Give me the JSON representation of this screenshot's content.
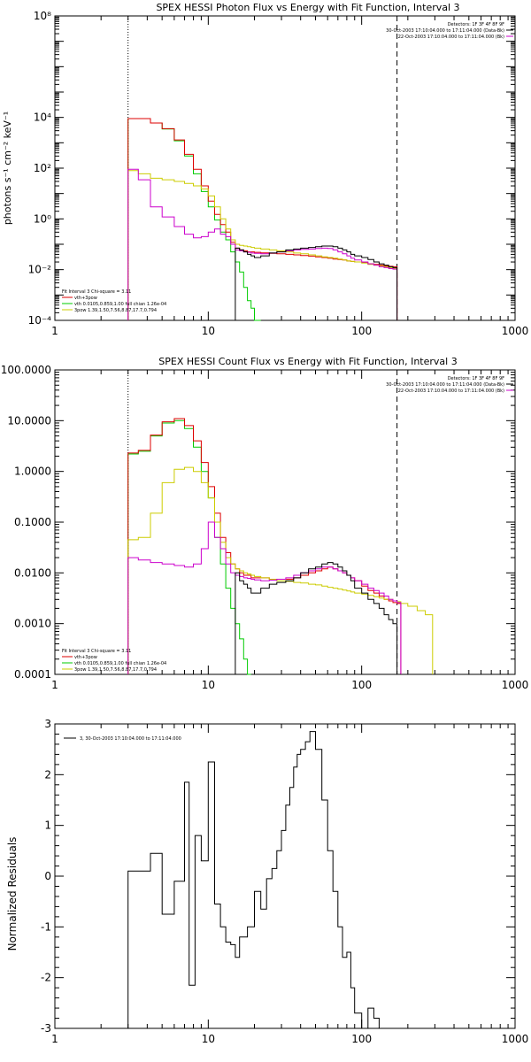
{
  "chart_data": [
    {
      "type": "line",
      "title": "SPEX HESSI Photon Flux vs Energy with Fit Function, Interval 3",
      "ylabel": "photons s⁻¹ cm⁻² keV⁻¹",
      "xlabel": "",
      "xscale": "log",
      "yscale": "log",
      "xlim": [
        1,
        1000
      ],
      "ylim": [
        0.0001,
        100000000
      ],
      "xticks": [
        {
          "v": 1,
          "label": "1"
        },
        {
          "v": 10,
          "label": "10"
        },
        {
          "v": 100,
          "label": "100"
        },
        {
          "v": 1000,
          "label": "1000"
        }
      ],
      "yticks": [
        {
          "v": 0.0001,
          "label": "10⁻⁴"
        },
        {
          "v": 0.01,
          "label": "10⁻²"
        },
        {
          "v": 1,
          "label": "10⁰"
        },
        {
          "v": 100,
          "label": "10²"
        },
        {
          "v": 10000,
          "label": "10⁴"
        },
        {
          "v": 100000000,
          "label": "10⁸"
        }
      ],
      "vlines": [
        {
          "x": 3,
          "style": "dotted"
        },
        {
          "x": 170,
          "style": "dashed"
        }
      ],
      "legend_top": [
        "Detectors: 1F 3F 4F 8F 9F",
        "30-Oct-2003 17:10:04.000 to 17:11:04.000 (Data-Bk)",
        "22-Oct-2003 17:10:04.000 to 17:11:04.000 (Bk)"
      ],
      "legend_top_colors": [
        "",
        "#000000",
        "#cc00cc"
      ],
      "legend_bottom": [
        "Fit Interval 3   Chi-square = 3.11",
        "vth+3pow",
        "vth 0.0105,0.859,1.00   full chian 1.26e-04",
        "3pow 1.39,1.50,7.56,8.87,17.7,0.794"
      ],
      "legend_bottom_colors": [
        "",
        "#dd0000",
        "#00cc00",
        "#cccc00"
      ],
      "x": [
        3,
        3.5,
        4.2,
        5,
        6,
        7,
        8,
        9,
        10,
        11,
        12,
        13,
        14,
        15,
        16,
        17,
        18,
        19,
        20,
        22,
        25,
        28,
        32,
        36,
        40,
        45,
        50,
        55,
        60,
        65,
        70,
        75,
        80,
        85,
        90,
        100,
        110,
        120,
        130,
        140,
        150,
        160,
        170
      ],
      "series": [
        {
          "color": "#00cc00",
          "values": [
            9000,
            9000,
            6000,
            3500,
            1200,
            300,
            60,
            12,
            3,
            0.9,
            0.3,
            0.15,
            0.05,
            0.02,
            0.008,
            0.002,
            0.0006,
            0.0003,
            0.0001,
            null,
            null,
            null,
            null,
            null,
            null,
            null,
            null,
            null,
            null,
            null,
            null,
            null,
            null,
            null,
            null,
            null,
            null,
            null,
            null,
            null,
            null,
            null,
            null
          ]
        },
        {
          "color": "#dd0000",
          "values": [
            9000,
            9000,
            6000,
            3600,
            1300,
            350,
            90,
            20,
            5,
            1.5,
            0.6,
            0.3,
            0.12,
            0.07,
            0.06,
            0.055,
            0.05,
            0.05,
            0.048,
            0.046,
            0.044,
            0.042,
            0.04,
            0.038,
            0.036,
            0.034,
            0.032,
            0.03,
            0.028,
            0.026,
            0.025,
            0.024,
            0.022,
            0.021,
            0.02,
            0.019,
            0.017,
            0.016,
            0.015,
            0.014,
            0.0135,
            0.013,
            0.012
          ]
        },
        {
          "color": "#cccc00",
          "values": [
            80,
            60,
            40,
            35,
            30,
            25,
            20,
            15,
            8,
            3,
            1,
            0.4,
            0.15,
            0.1,
            0.09,
            0.085,
            0.08,
            0.075,
            0.07,
            0.065,
            0.06,
            0.055,
            0.05,
            0.045,
            0.042,
            0.038,
            0.035,
            0.032,
            0.03,
            0.028,
            0.026,
            0.024,
            0.022,
            0.021,
            0.02,
            0.018,
            0.016,
            0.015,
            0.014,
            0.013,
            0.012,
            0.011,
            0.01
          ]
        },
        {
          "color": "#cc00cc",
          "values": [
            90,
            35,
            3,
            1.2,
            0.5,
            0.25,
            0.18,
            0.2,
            0.3,
            0.4,
            0.25,
            0.2,
            0.1,
            0.06,
            0.055,
            0.05,
            0.048,
            0.045,
            0.044,
            0.042,
            0.045,
            0.05,
            0.055,
            0.06,
            0.063,
            0.065,
            0.068,
            0.07,
            0.068,
            0.06,
            0.05,
            0.042,
            0.035,
            0.028,
            0.024,
            0.02,
            0.017,
            0.015,
            0.013,
            0.012,
            0.011,
            0.0105,
            0.01
          ]
        },
        {
          "color": "#000000",
          "values": [
            null,
            null,
            null,
            null,
            null,
            null,
            null,
            null,
            null,
            null,
            null,
            null,
            null,
            0.07,
            0.06,
            0.05,
            0.04,
            0.035,
            0.03,
            0.035,
            0.045,
            0.05,
            0.06,
            0.065,
            0.07,
            0.075,
            0.08,
            0.085,
            0.085,
            0.08,
            0.07,
            0.06,
            0.05,
            0.04,
            0.035,
            0.03,
            0.025,
            0.02,
            0.017,
            0.015,
            0.013,
            0.012,
            0.011
          ]
        }
      ]
    },
    {
      "type": "line",
      "title": "SPEX HESSI Count Flux vs Energy with Fit Function, Interval 3",
      "ylabel": "",
      "xlabel": "",
      "xscale": "log",
      "yscale": "log",
      "xlim": [
        1,
        1000
      ],
      "ylim": [
        0.0001,
        100
      ],
      "xticks": [
        {
          "v": 1,
          "label": "1"
        },
        {
          "v": 10,
          "label": "10"
        },
        {
          "v": 100,
          "label": "100"
        },
        {
          "v": 1000,
          "label": "1000"
        }
      ],
      "yticks": [
        {
          "v": 0.0001,
          "label": "0.0001"
        },
        {
          "v": 0.001,
          "label": "0.0010"
        },
        {
          "v": 0.01,
          "label": "0.0100"
        },
        {
          "v": 0.1,
          "label": "0.1000"
        },
        {
          "v": 1,
          "label": "1.0000"
        },
        {
          "v": 10,
          "label": "10.0000"
        },
        {
          "v": 100,
          "label": "100.0000"
        }
      ],
      "vlines": [
        {
          "x": 3,
          "style": "dotted"
        },
        {
          "x": 170,
          "style": "dashed"
        }
      ],
      "legend_top": [
        "Detectors: 1F 3F 4F 8F 9F",
        "30-Oct-2003 17:10:04.000 to 17:11:04.000 (Data-Bk)",
        "22-Oct-2003 17:10:04.000 to 17:11:04.000 (Bk)"
      ],
      "legend_top_colors": [
        "",
        "#000000",
        "#cc00cc"
      ],
      "legend_bottom": [
        "Fit Interval 3   Chi-square = 3.11",
        "vth+3pow",
        "vth 0.0105,0.859,1.00   full chian 1.26e-04",
        "3pow 1.39,1.50,7.56,8.87,17.7,0.794"
      ],
      "legend_bottom_colors": [
        "",
        "#dd0000",
        "#00cc00",
        "#cccc00"
      ],
      "x": [
        3,
        3.5,
        4.2,
        5,
        6,
        7,
        8,
        9,
        10,
        11,
        12,
        13,
        14,
        15,
        16,
        17,
        18,
        19,
        20,
        22,
        25,
        28,
        32,
        36,
        40,
        45,
        50,
        55,
        60,
        65,
        70,
        75,
        80,
        85,
        90,
        100,
        110,
        120,
        130,
        140,
        150,
        160,
        170,
        180,
        200,
        230,
        260,
        290
      ],
      "series": [
        {
          "color": "#00cc00",
          "values": [
            2.2,
            2.5,
            5,
            9,
            10,
            7,
            3,
            1,
            0.3,
            0.05,
            0.015,
            0.005,
            0.002,
            0.001,
            0.0005,
            0.0002,
            0.0001,
            null,
            null,
            null,
            null,
            null,
            null,
            null,
            null,
            null,
            null,
            null,
            null,
            null,
            null,
            null,
            null,
            null,
            null,
            null,
            null,
            null,
            null,
            null,
            null,
            null,
            null,
            null,
            null,
            null,
            null,
            null
          ]
        },
        {
          "color": "#dd0000",
          "values": [
            2.3,
            2.6,
            5.2,
            9.5,
            11,
            8,
            4,
            1.5,
            0.5,
            0.15,
            0.05,
            0.025,
            0.015,
            0.012,
            0.01,
            0.009,
            0.009,
            0.008,
            0.008,
            0.008,
            0.0075,
            0.0075,
            0.0075,
            0.008,
            0.009,
            0.01,
            0.011,
            0.012,
            0.013,
            0.012,
            0.011,
            0.01,
            0.009,
            0.008,
            0.007,
            0.0055,
            0.0045,
            0.004,
            0.0035,
            0.003,
            0.0028,
            0.0026,
            0.0025,
            null,
            null,
            null,
            null,
            null
          ]
        },
        {
          "color": "#cccc00",
          "values": [
            0.045,
            0.05,
            0.15,
            0.6,
            1.1,
            1.2,
            1,
            0.6,
            0.3,
            0.1,
            0.04,
            0.02,
            0.015,
            0.012,
            0.011,
            0.01,
            0.0095,
            0.009,
            0.0085,
            0.008,
            0.0075,
            0.007,
            0.0068,
            0.0065,
            0.0063,
            0.006,
            0.0058,
            0.0055,
            0.0052,
            0.005,
            0.0048,
            0.0046,
            0.0044,
            0.0042,
            0.004,
            0.0038,
            0.0036,
            0.0034,
            0.0032,
            0.003,
            0.003,
            0.0028,
            0.0027,
            0.0025,
            0.0022,
            0.0018,
            0.0015,
            0.0011
          ]
        },
        {
          "color": "#cc00cc",
          "values": [
            0.02,
            0.018,
            0.016,
            0.015,
            0.014,
            0.013,
            0.015,
            0.03,
            0.1,
            0.05,
            0.03,
            0.015,
            0.01,
            0.009,
            0.0085,
            0.008,
            0.0078,
            0.0075,
            0.0073,
            0.007,
            0.0072,
            0.0075,
            0.008,
            0.009,
            0.01,
            0.011,
            0.012,
            0.013,
            0.013,
            0.012,
            0.011,
            0.01,
            0.009,
            0.008,
            0.007,
            0.006,
            0.005,
            0.0045,
            0.004,
            0.0035,
            0.003,
            0.0028,
            0.0026,
            null,
            null,
            null,
            null,
            null
          ]
        },
        {
          "color": "#000000",
          "values": [
            null,
            null,
            null,
            null,
            null,
            null,
            null,
            null,
            null,
            null,
            null,
            null,
            null,
            0.01,
            0.007,
            0.006,
            0.005,
            0.004,
            0.004,
            0.005,
            0.006,
            0.0065,
            0.007,
            0.008,
            0.01,
            0.012,
            0.013,
            0.015,
            0.016,
            0.015,
            0.013,
            0.011,
            0.009,
            0.007,
            0.005,
            0.004,
            0.003,
            0.0025,
            0.002,
            0.0015,
            0.0012,
            0.001,
            0.0001,
            null,
            null,
            null,
            null,
            null
          ]
        }
      ]
    },
    {
      "type": "line",
      "title": "",
      "ylabel": "Normalized Residuals",
      "xlabel": "",
      "xscale": "log",
      "yscale": "linear",
      "xlim": [
        1,
        1000
      ],
      "ylim": [
        -3,
        3
      ],
      "xticks": [
        {
          "v": 1,
          "label": "1"
        },
        {
          "v": 10,
          "label": "10"
        },
        {
          "v": 100,
          "label": "100"
        },
        {
          "v": 1000,
          "label": "1000"
        }
      ],
      "yticks": [
        {
          "v": -3,
          "label": "-3"
        },
        {
          "v": -2,
          "label": "-2"
        },
        {
          "v": -1,
          "label": "-1"
        },
        {
          "v": 0,
          "label": "0"
        },
        {
          "v": 1,
          "label": "1"
        },
        {
          "v": 2,
          "label": "2"
        },
        {
          "v": 3,
          "label": "3"
        }
      ],
      "legend_top": [
        "3, 30-Oct-2003 17:10:04.000 to 17:11:04.000"
      ],
      "legend_top_colors": [
        "#000000"
      ],
      "edges": [
        3,
        4.2,
        5,
        6,
        7,
        7.5,
        8.2,
        9,
        10,
        11,
        12,
        13,
        14,
        15,
        16,
        18,
        20,
        22,
        24,
        26,
        28,
        30,
        32,
        34,
        36,
        38,
        40,
        43,
        46,
        50,
        55,
        60,
        65,
        70,
        75,
        80,
        85,
        90,
        100,
        110,
        120,
        130,
        140,
        150,
        160,
        170
      ],
      "values": [
        0.1,
        0.45,
        -0.75,
        -0.1,
        1.85,
        -2.15,
        0.8,
        0.3,
        2.25,
        -0.55,
        -1.0,
        -1.3,
        -1.35,
        -1.6,
        -1.2,
        -1.0,
        -0.3,
        -0.65,
        -0.05,
        0.15,
        0.5,
        0.9,
        1.4,
        1.75,
        2.15,
        2.4,
        2.5,
        2.65,
        2.85,
        2.5,
        1.5,
        0.5,
        -0.3,
        -1.0,
        -1.6,
        -1.5,
        -2.2,
        -2.7,
        -3.0,
        -2.6,
        -2.8,
        -3.0,
        -3.0,
        -3.0,
        -3.0
      ],
      "line_color": "#000000"
    }
  ]
}
